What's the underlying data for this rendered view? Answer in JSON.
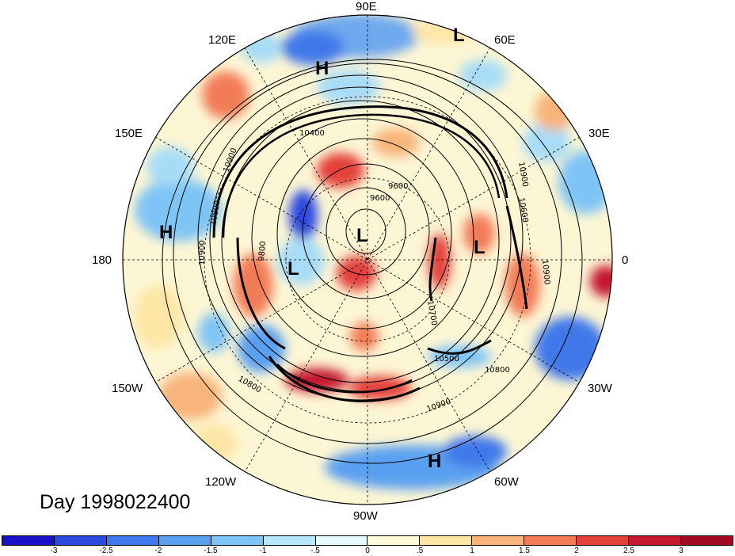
{
  "day_label": "Day 1998022400",
  "lon_labels": [
    "90E",
    "60E",
    "30E",
    "0",
    "30W",
    "60W",
    "90W",
    "120W",
    "150W",
    "180",
    "150E",
    "120E"
  ],
  "contour_labels": [
    "10400",
    "10900",
    "10800",
    "9600",
    "10600",
    "10900",
    "9800",
    "10900",
    "10500",
    "10800",
    "10900",
    "10800",
    "10900",
    "9600",
    "10700"
  ],
  "pressure_centers": [
    "L",
    "H",
    "H",
    "L",
    "L",
    "L",
    "H"
  ],
  "colorbar": {
    "ticks": [
      "-3",
      "-2.5",
      "-2",
      "-1.5",
      "-1",
      "-.5",
      "0",
      ".5",
      "1",
      "1.5",
      "2",
      "2.5",
      "3"
    ],
    "colors": [
      "#1a10c8",
      "#2a4ae0",
      "#3f78ea",
      "#5aa0f0",
      "#7fc4f6",
      "#b4e8fa",
      "#e6fbfd",
      "#fefbd8",
      "#fde6a6",
      "#f8b47a",
      "#f27c56",
      "#e3413a",
      "#c4192e",
      "#a00a22"
    ]
  }
}
